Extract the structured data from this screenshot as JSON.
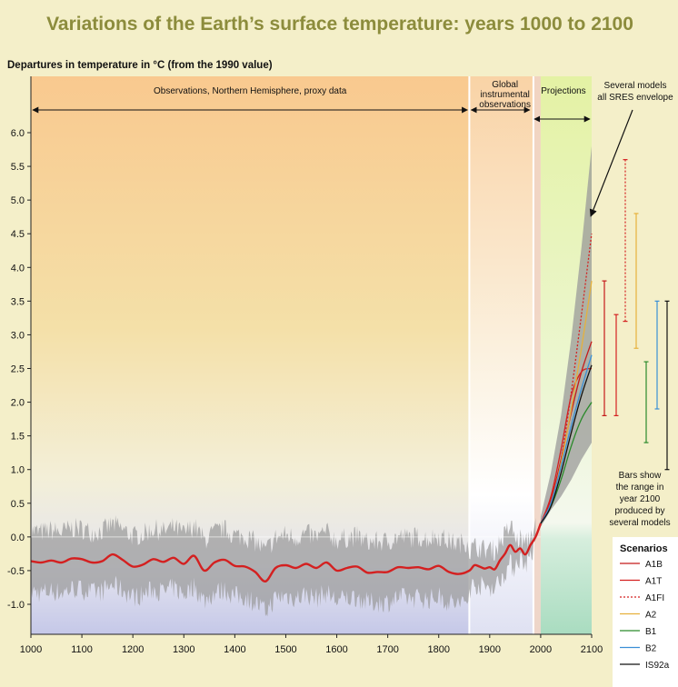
{
  "chart_data": {
    "type": "line",
    "title": "Variations of the Earth’s surface temperature: years 1000 to 2100",
    "ylabel": "Departures in temperature in °C (from the 1990 value)",
    "xlim": [
      1000,
      2100
    ],
    "ylim": [
      -1.4,
      6.4
    ],
    "x_ticks": [
      "1000",
      "1100",
      "1200",
      "1300",
      "1400",
      "1500",
      "1600",
      "1700",
      "1800",
      "1900",
      "2000",
      "2100"
    ],
    "y_ticks": [
      "6.0",
      "5.5",
      "5.0",
      "4.5",
      "4.0",
      "3.5",
      "3.0",
      "2.5",
      "2.0",
      "1.5",
      "1.0",
      "0.5",
      "0.0",
      "-0.5",
      "-1.0"
    ],
    "periods": [
      {
        "label": "Observations, Northern Hemisphere, proxy data",
        "start": 1000,
        "end": 1860
      },
      {
        "label_lines": [
          "Global",
          "instrumental",
          "observations"
        ],
        "start": 1860,
        "end": 2000
      },
      {
        "label": "Projections",
        "start": 2000,
        "end": 2100
      }
    ],
    "annotations": {
      "envelope_lines": [
        "Several models",
        "all SRES envelope"
      ],
      "bars_lines": [
        "Bars show",
        "the range in",
        "year 2100",
        "produced by",
        "several models"
      ]
    },
    "observed": {
      "name": "observations",
      "color": "#d42020",
      "x": [
        1000,
        1020,
        1040,
        1060,
        1080,
        1100,
        1120,
        1140,
        1160,
        1180,
        1200,
        1220,
        1240,
        1260,
        1280,
        1300,
        1320,
        1340,
        1360,
        1380,
        1400,
        1420,
        1440,
        1460,
        1480,
        1500,
        1520,
        1540,
        1560,
        1580,
        1600,
        1620,
        1640,
        1660,
        1680,
        1700,
        1720,
        1740,
        1760,
        1780,
        1800,
        1820,
        1840,
        1860,
        1870,
        1880,
        1890,
        1900,
        1910,
        1920,
        1930,
        1940,
        1950,
        1960,
        1970,
        1980,
        1990,
        2000
      ],
      "y": [
        -0.36,
        -0.38,
        -0.35,
        -0.38,
        -0.32,
        -0.33,
        -0.38,
        -0.36,
        -0.26,
        -0.34,
        -0.44,
        -0.41,
        -0.33,
        -0.37,
        -0.31,
        -0.4,
        -0.28,
        -0.5,
        -0.38,
        -0.34,
        -0.43,
        -0.44,
        -0.52,
        -0.66,
        -0.46,
        -0.42,
        -0.46,
        -0.4,
        -0.46,
        -0.38,
        -0.5,
        -0.46,
        -0.44,
        -0.53,
        -0.52,
        -0.52,
        -0.45,
        -0.46,
        -0.45,
        -0.48,
        -0.43,
        -0.52,
        -0.55,
        -0.5,
        -0.42,
        -0.44,
        -0.47,
        -0.45,
        -0.48,
        -0.35,
        -0.25,
        -0.12,
        -0.22,
        -0.17,
        -0.26,
        -0.12,
        0.0,
        0.2
      ]
    },
    "envelope": {
      "x": [
        2000,
        2020,
        2040,
        2060,
        2080,
        2100
      ],
      "low": [
        0.15,
        0.4,
        0.6,
        0.85,
        1.15,
        1.4
      ],
      "high": [
        0.3,
        0.95,
        1.8,
        2.95,
        4.3,
        5.8
      ]
    },
    "scenarios": [
      {
        "name": "A1B",
        "color": "#c51a1a",
        "style": "solid",
        "x": [
          2000,
          2020,
          2040,
          2060,
          2080,
          2100
        ],
        "y": [
          0.2,
          0.55,
          1.15,
          1.85,
          2.45,
          2.9
        ],
        "range": [
          1.8,
          3.8
        ]
      },
      {
        "name": "A1T",
        "color": "#d42020",
        "style": "solid",
        "x": [
          2000,
          2020,
          2040,
          2060,
          2080,
          2100
        ],
        "y": [
          0.2,
          0.6,
          1.3,
          2.1,
          2.45,
          2.5
        ],
        "range": [
          1.8,
          3.3
        ]
      },
      {
        "name": "A1FI",
        "color": "#d42020",
        "style": "dashed",
        "x": [
          2000,
          2020,
          2040,
          2060,
          2080,
          2100
        ],
        "y": [
          0.2,
          0.55,
          1.15,
          2.15,
          3.3,
          4.5
        ],
        "range": [
          3.2,
          5.6
        ]
      },
      {
        "name": "A2",
        "color": "#e6b13c",
        "style": "solid",
        "x": [
          2000,
          2020,
          2040,
          2060,
          2080,
          2100
        ],
        "y": [
          0.2,
          0.5,
          1.1,
          1.9,
          2.8,
          3.8
        ],
        "range": [
          2.8,
          4.8
        ]
      },
      {
        "name": "B1",
        "color": "#2a8a2a",
        "style": "solid",
        "x": [
          2000,
          2020,
          2040,
          2060,
          2080,
          2100
        ],
        "y": [
          0.2,
          0.45,
          0.85,
          1.35,
          1.75,
          2.0
        ],
        "range": [
          1.4,
          2.6
        ]
      },
      {
        "name": "B2",
        "color": "#3a8fd6",
        "style": "solid",
        "x": [
          2000,
          2020,
          2040,
          2060,
          2080,
          2100
        ],
        "y": [
          0.2,
          0.5,
          1.05,
          1.65,
          2.2,
          2.7
        ],
        "range": [
          1.9,
          3.5
        ]
      },
      {
        "name": "IS92a",
        "color": "#111111",
        "style": "solid",
        "x": [
          2000,
          2020,
          2040,
          2060,
          2080,
          2100
        ],
        "y": [
          0.2,
          0.45,
          0.95,
          1.55,
          2.1,
          2.55
        ],
        "range": [
          1.0,
          3.5
        ]
      }
    ],
    "legend_title": "Scenarios",
    "legend_position": "bottom-right"
  }
}
